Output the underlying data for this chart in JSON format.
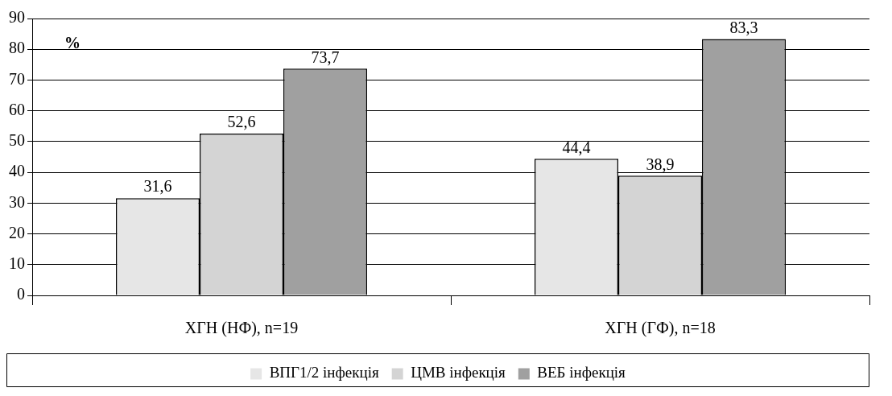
{
  "chart_data": {
    "type": "bar",
    "categories": [
      "ХГН (НФ), n=19",
      "ХГН (ГФ), n=18"
    ],
    "series": [
      {
        "name": "ВПГ1/2 інфекція",
        "color": "#e6e6e6",
        "values": [
          31.6,
          44.4
        ],
        "value_labels": [
          "31,6",
          "44,4"
        ]
      },
      {
        "name": "ЦМВ інфекція",
        "color": "#d4d4d4",
        "values": [
          52.6,
          38.9
        ],
        "value_labels": [
          "52,6",
          "38,9"
        ]
      },
      {
        "name": "ВЕБ інфекція",
        "color": "#a0a0a0",
        "values": [
          73.7,
          83.3
        ],
        "value_labels": [
          "73,7",
          "83,3"
        ]
      }
    ],
    "ylim": [
      0,
      90
    ],
    "yticks": [
      0,
      10,
      20,
      30,
      40,
      50,
      60,
      70,
      80,
      90
    ],
    "grid": "y",
    "legend": "bottom",
    "annotations": [
      "%"
    ]
  }
}
